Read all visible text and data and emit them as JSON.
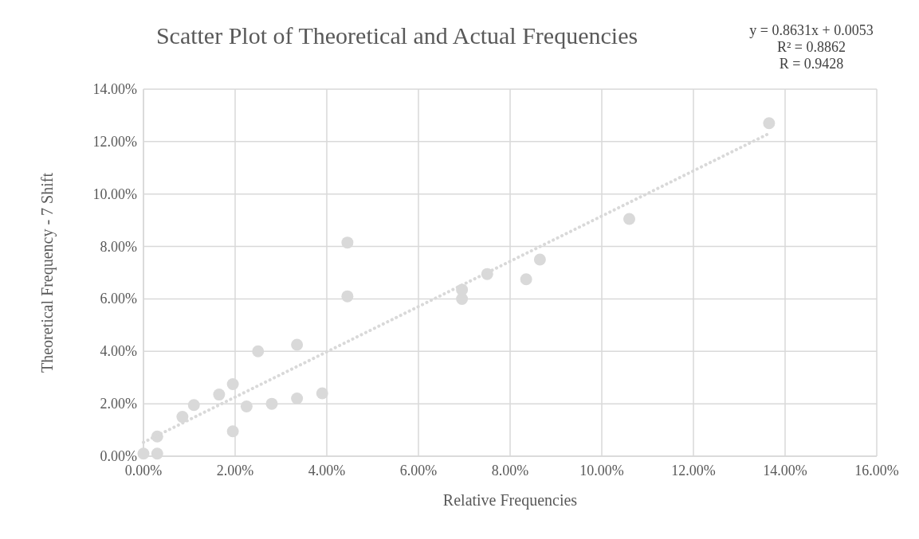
{
  "chart_data": {
    "type": "scatter",
    "title": "Scatter Plot of Theoretical and Actual Frequencies",
    "xlabel": "Relative Frequencies",
    "ylabel": "Theoretical Frequency - 7 Shift",
    "annotations": [
      "y = 0.8631x + 0.0053",
      "R² = 0.8862",
      "R = 0.9428"
    ],
    "xlim": [
      0,
      0.16
    ],
    "ylim": [
      0,
      0.14
    ],
    "xticks": [
      {
        "value": 0,
        "label": "0.00%"
      },
      {
        "value": 0.02,
        "label": "2.00%"
      },
      {
        "value": 0.04,
        "label": "4.00%"
      },
      {
        "value": 0.06,
        "label": "6.00%"
      },
      {
        "value": 0.08,
        "label": "8.00%"
      },
      {
        "value": 0.1,
        "label": "10.00%"
      },
      {
        "value": 0.12,
        "label": "12.00%"
      },
      {
        "value": 0.14,
        "label": "14.00%"
      },
      {
        "value": 0.16,
        "label": "16.00%"
      }
    ],
    "yticks": [
      {
        "value": 0,
        "label": "0.00%"
      },
      {
        "value": 0.02,
        "label": "2.00%"
      },
      {
        "value": 0.04,
        "label": "4.00%"
      },
      {
        "value": 0.06,
        "label": "6.00%"
      },
      {
        "value": 0.08,
        "label": "8.00%"
      },
      {
        "value": 0.1,
        "label": "10.00%"
      },
      {
        "value": 0.12,
        "label": "12.00%"
      },
      {
        "value": 0.14,
        "label": "14.00%"
      }
    ],
    "grid": true,
    "marker": "circle",
    "series": [
      {
        "color": "#d9d9d9",
        "x": [
          0.0,
          0.003,
          0.003,
          0.0085,
          0.011,
          0.0165,
          0.0195,
          0.0195,
          0.0225,
          0.025,
          0.028,
          0.0335,
          0.0335,
          0.039,
          0.0445,
          0.0445,
          0.0695,
          0.0695,
          0.075,
          0.0835,
          0.0865,
          0.106,
          0.1365
        ],
        "values": [
          0.001,
          0.001,
          0.0075,
          0.015,
          0.0195,
          0.0235,
          0.0275,
          0.0095,
          0.019,
          0.04,
          0.02,
          0.0425,
          0.022,
          0.024,
          0.0815,
          0.061,
          0.0635,
          0.06,
          0.0695,
          0.0675,
          0.075,
          0.0905,
          0.127
        ]
      },
      {
        "type": "line",
        "color": "#d9d9d9",
        "line_style": "dotted",
        "marker": "none",
        "x": [
          0,
          0.1365
        ],
        "values": [
          0.0053,
          0.1231
        ]
      }
    ]
  }
}
